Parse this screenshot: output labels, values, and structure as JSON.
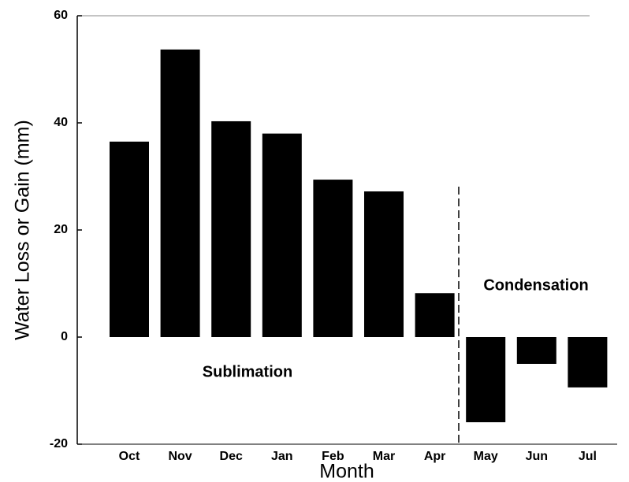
{
  "chart_data": {
    "type": "bar",
    "x_label": "Month",
    "y_label": "Water Loss or Gain (mm)",
    "categories": [
      "Oct",
      "Nov",
      "Dec",
      "Jan",
      "Feb",
      "Mar",
      "Apr",
      "May",
      "Jun",
      "Jul"
    ],
    "values": [
      36.5,
      53.7,
      40.3,
      38,
      29.4,
      27.2,
      8.2,
      -15.9,
      -5,
      -9.4
    ],
    "color": "#000000",
    "ylim": [
      -20,
      60
    ],
    "yticks": [
      -20,
      0,
      20,
      40,
      60
    ],
    "annotations": [
      "Sublimation",
      "Condensation"
    ]
  }
}
